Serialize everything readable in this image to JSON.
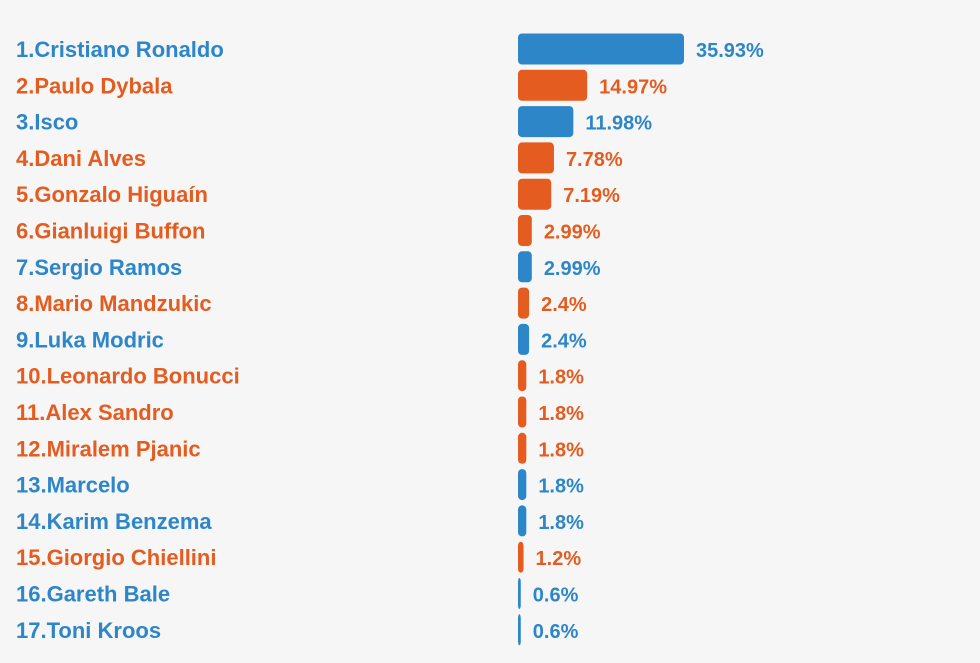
{
  "colors": {
    "blue": "#2d86c8",
    "orange": "#e45c1f",
    "background": "#f6f6f6"
  },
  "chart_data": {
    "type": "bar",
    "orientation": "horizontal",
    "title": "",
    "xlabel": "",
    "ylabel": "",
    "xlim": [
      0,
      35.93
    ],
    "grid": false,
    "categories": [
      "1.Cristiano Ronaldo",
      "2.Paulo Dybala",
      "3.Isco",
      "4.Dani Alves",
      "5.Gonzalo Higuaín",
      "6.Gianluigi Buffon",
      "7.Sergio Ramos",
      "8.Mario Mandzukic",
      "9.Luka Modric",
      "10.Leonardo Bonucci",
      "11.Alex Sandro",
      "12.Miralem Pjanic",
      "13.Marcelo",
      "14.Karim Benzema",
      "15.Giorgio Chiellini",
      "16.Gareth Bale",
      "17.Toni Kroos"
    ],
    "values": [
      35.93,
      14.97,
      11.98,
      7.78,
      7.19,
      2.99,
      2.99,
      2.4,
      2.4,
      1.8,
      1.8,
      1.8,
      1.8,
      1.8,
      1.2,
      0.6,
      0.6
    ],
    "labels": [
      "35.93%",
      "14.97%",
      "11.98%",
      "7.78%",
      "7.19%",
      "2.99%",
      "2.99%",
      "2.4%",
      "2.4%",
      "1.8%",
      "1.8%",
      "1.8%",
      "1.8%",
      "1.8%",
      "1.2%",
      "0.6%",
      "0.6%"
    ],
    "series_colors": [
      "blue",
      "orange",
      "blue",
      "orange",
      "orange",
      "orange",
      "blue",
      "orange",
      "blue",
      "orange",
      "orange",
      "orange",
      "blue",
      "blue",
      "orange",
      "blue",
      "blue"
    ]
  }
}
